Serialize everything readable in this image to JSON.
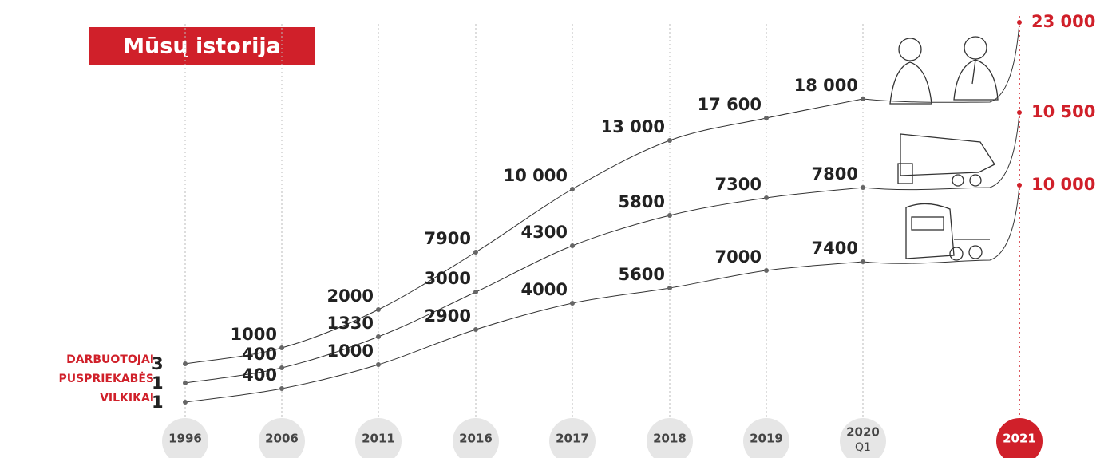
{
  "title": "Mūsų istorija",
  "years": [
    {
      "label": "1996"
    },
    {
      "label": "2006"
    },
    {
      "label": "2011"
    },
    {
      "label": "2016"
    },
    {
      "label": "2017"
    },
    {
      "label": "2018"
    },
    {
      "label": "2019"
    },
    {
      "label": "2020",
      "sub": "Q1"
    },
    {
      "label": "2021"
    }
  ],
  "series": [
    {
      "name": "DARBUOTOJAI",
      "values": [
        "3",
        "1000",
        "2000",
        "7900",
        "10 000",
        "13 000",
        "17 600",
        "18 000",
        "23 000"
      ]
    },
    {
      "name": "PUSPRIEKABĖS",
      "values": [
        "1",
        "400",
        "1330",
        "3000",
        "4300",
        "5800",
        "7300",
        "7800",
        "10 500"
      ]
    },
    {
      "name": "VILKIKAI",
      "values": [
        "1",
        "400",
        "1000",
        "2900",
        "4000",
        "5600",
        "7000",
        "7400",
        "10 000"
      ]
    }
  ]
}
